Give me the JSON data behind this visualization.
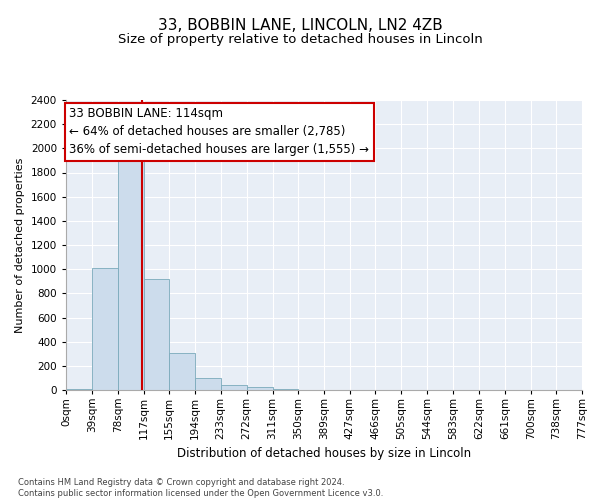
{
  "title_line1": "33, BOBBIN LANE, LINCOLN, LN2 4ZB",
  "title_line2": "Size of property relative to detached houses in Lincoln",
  "xlabel": "Distribution of detached houses by size in Lincoln",
  "ylabel": "Number of detached properties",
  "bar_edges": [
    0,
    39,
    78,
    117,
    155,
    194,
    233,
    272,
    311,
    350,
    389,
    427,
    466,
    505,
    544,
    583,
    622,
    661,
    700,
    738,
    777
  ],
  "bar_values": [
    10,
    1010,
    1900,
    920,
    310,
    100,
    45,
    25,
    5,
    0,
    0,
    0,
    0,
    0,
    0,
    0,
    0,
    0,
    0,
    0
  ],
  "bar_color": "#ccdcec",
  "bar_edge_color": "#7aaabb",
  "ylim": [
    0,
    2400
  ],
  "yticks": [
    0,
    200,
    400,
    600,
    800,
    1000,
    1200,
    1400,
    1600,
    1800,
    2000,
    2200,
    2400
  ],
  "xlim": [
    0,
    777
  ],
  "property_size": 114,
  "vline_color": "#cc0000",
  "annotation_text": "33 BOBBIN LANE: 114sqm\n← 64% of detached houses are smaller (2,785)\n36% of semi-detached houses are larger (1,555) →",
  "annotation_box_color": "#ffffff",
  "annotation_box_edge": "#cc0000",
  "bg_color": "#e8eef6",
  "grid_color": "#ffffff",
  "footer_line1": "Contains HM Land Registry data © Crown copyright and database right 2024.",
  "footer_line2": "Contains public sector information licensed under the Open Government Licence v3.0.",
  "title_fontsize": 11,
  "subtitle_fontsize": 9.5,
  "annotation_fontsize": 8.5,
  "ylabel_fontsize": 8,
  "xlabel_fontsize": 8.5,
  "tick_label_fontsize": 7.5,
  "footer_fontsize": 6
}
